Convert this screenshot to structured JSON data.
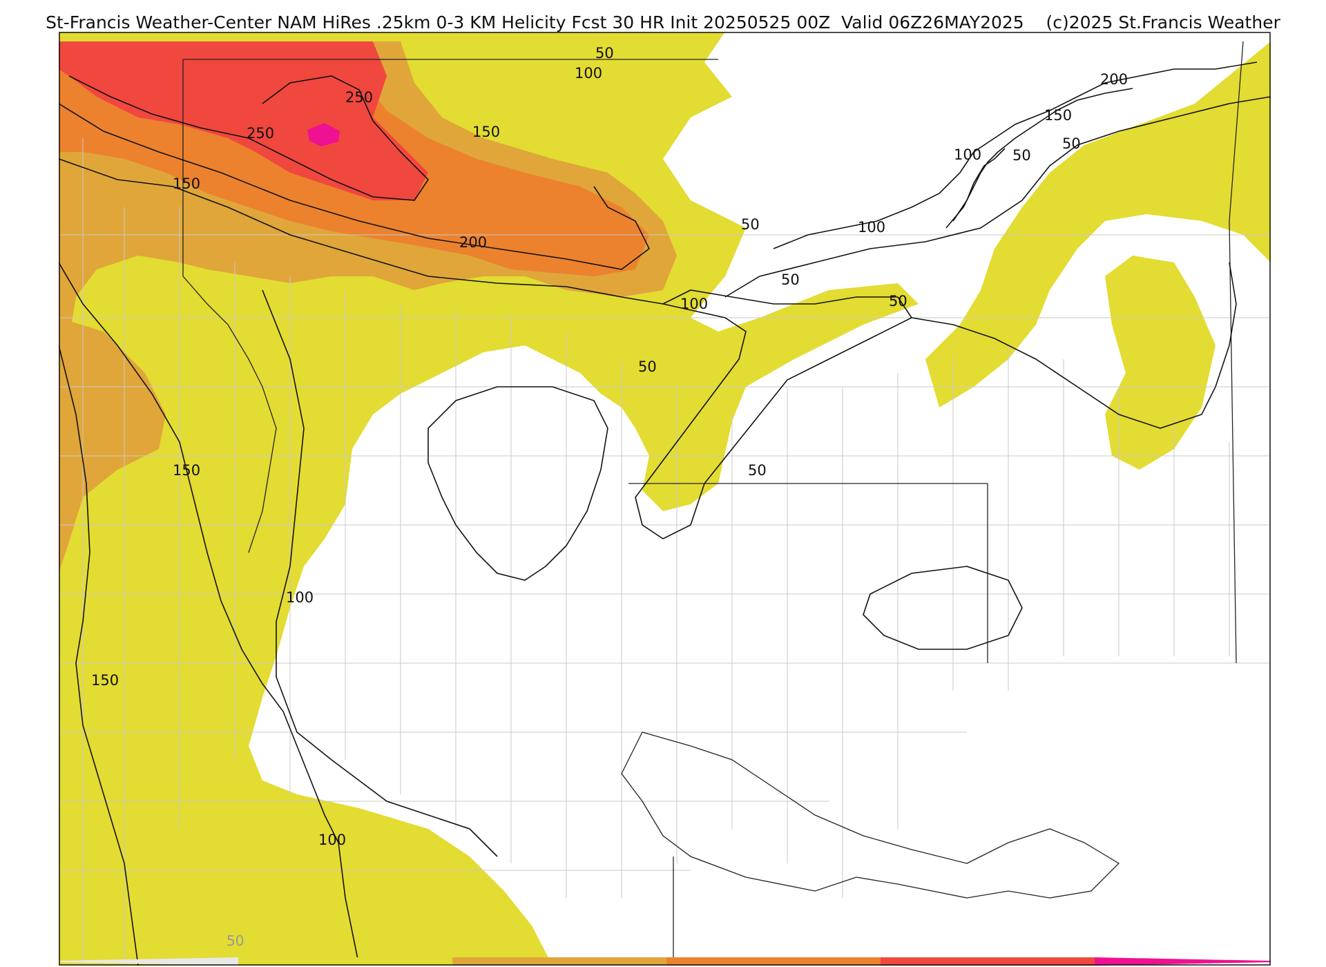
{
  "header": {
    "title": "St-Francis Weather-Center NAM HiRes .25km 0-3 KM Helicity Fcst 30 HR Init 20250525 00Z  Valid 06Z26MAY2025    (c)2025 St.Francis Weather"
  },
  "legend": {
    "first_tick": "50",
    "colors": [
      "#e3dc32",
      "#e0a63a",
      "#ec822e",
      "#f0473f",
      "#ee1191"
    ]
  },
  "contour_labels": [
    {
      "id": "c50a",
      "text": "50"
    },
    {
      "id": "c100a",
      "text": "100"
    },
    {
      "id": "c250a",
      "text": "250"
    },
    {
      "id": "c250b",
      "text": "250"
    },
    {
      "id": "c150a",
      "text": "150"
    },
    {
      "id": "c150b",
      "text": "150"
    },
    {
      "id": "c200a",
      "text": "200"
    },
    {
      "id": "c50b",
      "text": "50"
    },
    {
      "id": "c100b",
      "text": "100"
    },
    {
      "id": "c50c",
      "text": "50"
    },
    {
      "id": "c50d",
      "text": "50"
    },
    {
      "id": "c150c",
      "text": "150"
    },
    {
      "id": "c50e",
      "text": "50"
    },
    {
      "id": "c100c",
      "text": "100"
    },
    {
      "id": "c150d",
      "text": "150"
    },
    {
      "id": "c100d",
      "text": "100"
    },
    {
      "id": "c100e",
      "text": "100"
    },
    {
      "id": "c50f",
      "text": "50"
    },
    {
      "id": "c100f",
      "text": "100"
    },
    {
      "id": "c50g",
      "text": "50"
    },
    {
      "id": "c200b",
      "text": "200"
    },
    {
      "id": "c150e",
      "text": "150"
    },
    {
      "id": "c50h",
      "text": "50"
    }
  ]
}
